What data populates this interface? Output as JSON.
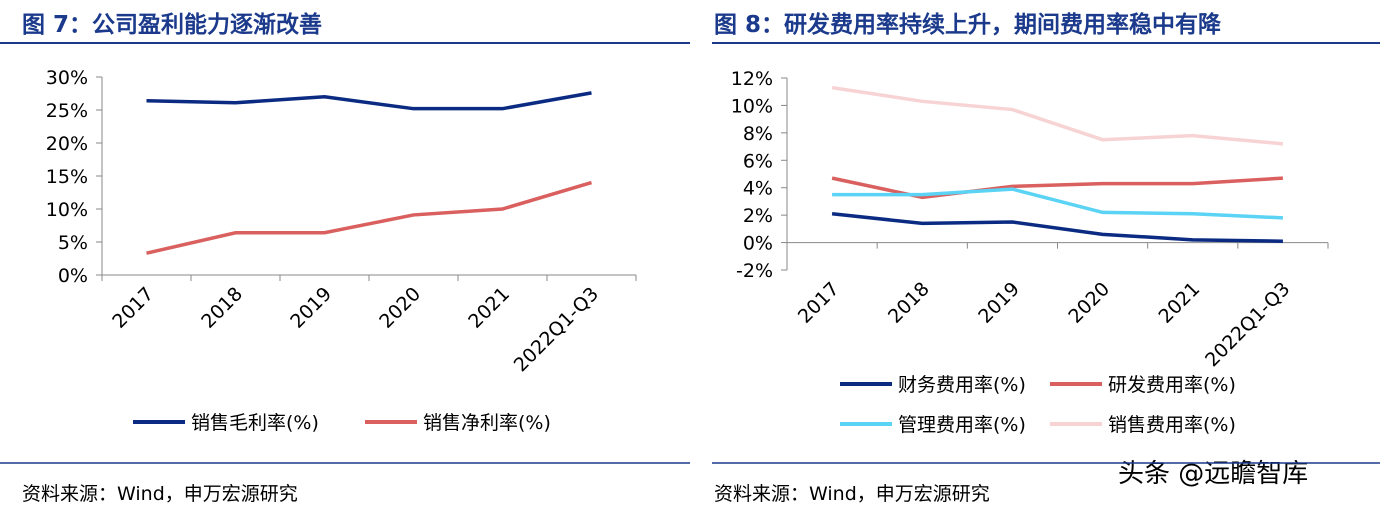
{
  "chart_data": [
    {
      "type": "line",
      "title": "图 7：公司盈利能力逐渐改善",
      "categories": [
        "2017",
        "2018",
        "2019",
        "2020",
        "2021",
        "2022Q1-Q3"
      ],
      "series": [
        {
          "name": "销售毛利率(%)",
          "color": "#0b2b83",
          "values": [
            26.4,
            26.1,
            27.0,
            25.2,
            25.2,
            27.6
          ]
        },
        {
          "name": "销售净利率(%)",
          "color": "#d9605e",
          "values": [
            3.3,
            6.4,
            6.4,
            9.1,
            10.0,
            14.0
          ]
        }
      ],
      "ylim": [
        0,
        30
      ],
      "yticks": [
        {
          "value": 0,
          "label": "0%"
        },
        {
          "value": 5,
          "label": "5%"
        },
        {
          "value": 10,
          "label": "10%"
        },
        {
          "value": 15,
          "label": "15%"
        },
        {
          "value": 20,
          "label": "20%"
        },
        {
          "value": 25,
          "label": "25%"
        },
        {
          "value": 30,
          "label": "30%"
        }
      ],
      "source": "资料来源：Wind，申万宏源研究"
    },
    {
      "type": "line",
      "title": "图 8：研发费用率持续上升，期间费用率稳中有降",
      "categories": [
        "2017",
        "2018",
        "2019",
        "2020",
        "2021",
        "2022Q1-Q3"
      ],
      "series": [
        {
          "name": "财务费用率(%)",
          "color": "#0b2b83",
          "values": [
            2.1,
            1.4,
            1.5,
            0.6,
            0.2,
            0.1
          ]
        },
        {
          "name": "研发费用率(%)",
          "color": "#d9605e",
          "values": [
            4.7,
            3.3,
            4.1,
            4.3,
            4.3,
            4.7
          ]
        },
        {
          "name": "管理费用率(%)",
          "color": "#5bd3f5",
          "values": [
            3.5,
            3.5,
            3.9,
            2.2,
            2.1,
            1.8
          ]
        },
        {
          "name": "销售费用率(%)",
          "color": "#f7d3d4",
          "values": [
            11.3,
            10.3,
            9.7,
            7.5,
            7.8,
            7.2
          ]
        }
      ],
      "ylim": [
        -2,
        12
      ],
      "yticks": [
        {
          "value": -2,
          "label": "-2%"
        },
        {
          "value": 0,
          "label": "0%"
        },
        {
          "value": 2,
          "label": "2%"
        },
        {
          "value": 4,
          "label": "4%"
        },
        {
          "value": 6,
          "label": "6%"
        },
        {
          "value": 8,
          "label": "8%"
        },
        {
          "value": 10,
          "label": "10%"
        },
        {
          "value": 12,
          "label": "12%"
        }
      ],
      "source": "资料来源：Wind，申万宏源研究"
    }
  ],
  "watermark": "头条 @远瞻智库"
}
